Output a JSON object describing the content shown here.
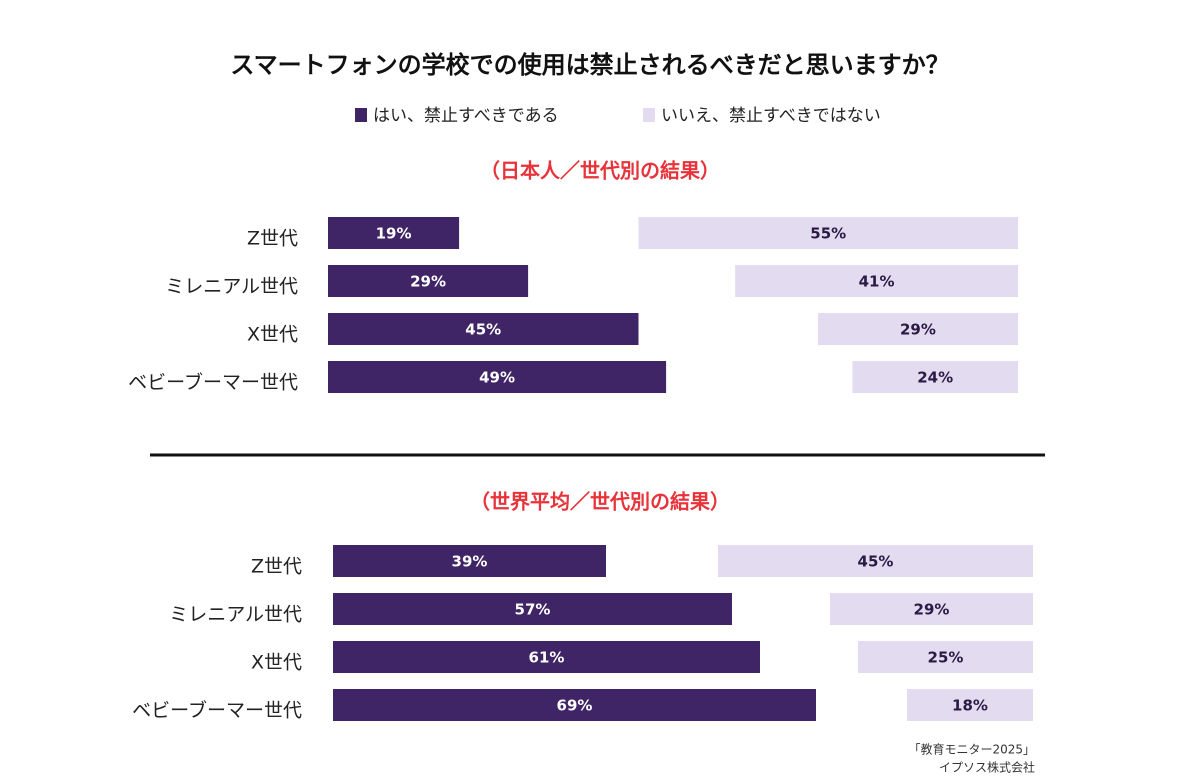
{
  "title": "スマートフォンの学校での使用は禁止されるべきだと思いますか？",
  "source": [
    "「教育モニター2025」",
    "イプソス株式会社"
  ],
  "chart_data": [
    {
      "type": "bar",
      "subtitle": "（日本人／世代別の結果）",
      "categories": [
        "Z世代",
        "ミレニアル世代",
        "X世代",
        "ベビーブーマー世代"
      ],
      "series": [
        {
          "name": "はい、禁止すべきである",
          "color": "#3f2466",
          "values": [
            19,
            29,
            45,
            49
          ],
          "value_labels": [
            "19%",
            "29%",
            "45%",
            "49%"
          ]
        },
        {
          "name": "いいえ、禁止すべきではない",
          "color": "#e3dcf0",
          "values": [
            55,
            41,
            29,
            24
          ],
          "value_labels": [
            "55%",
            "41%",
            "29%",
            "24%"
          ]
        }
      ]
    },
    {
      "type": "bar",
      "subtitle": "（世界平均／世代別の結果）",
      "categories": [
        "Z世代",
        "ミレニアル世代",
        "X世代",
        "ベビーブーマー世代"
      ],
      "series": [
        {
          "name": "はい、禁止すべきである",
          "color": "#3f2466",
          "values": [
            39,
            57,
            61,
            69
          ],
          "value_labels": [
            "39%",
            "57%",
            "61%",
            "69%"
          ]
        },
        {
          "name": "いいえ、禁止すべきではない",
          "color": "#e3dcf0",
          "values": [
            45,
            29,
            25,
            18
          ],
          "value_labels": [
            "45%",
            "29%",
            "25%",
            "18%"
          ]
        }
      ]
    }
  ]
}
